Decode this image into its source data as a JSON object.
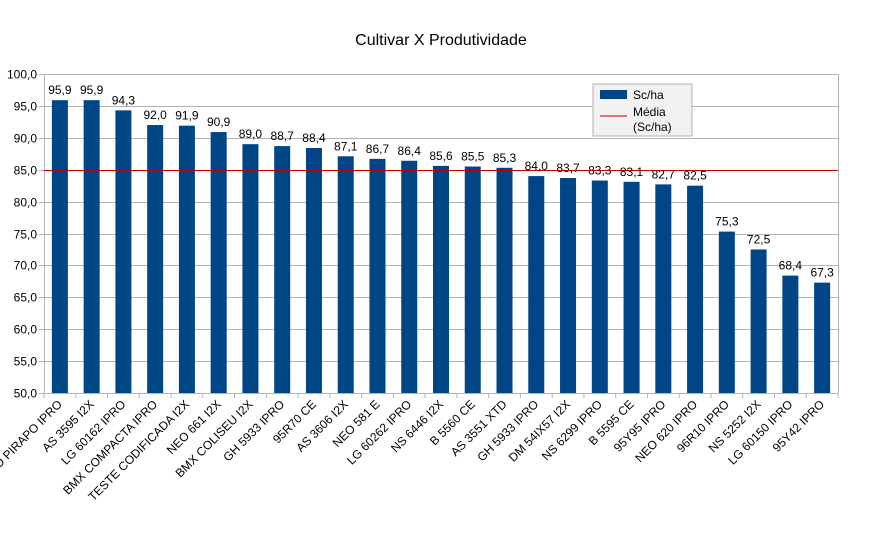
{
  "chart_data": {
    "type": "bar",
    "title": "Cultivar X Produtividade",
    "xlabel": "",
    "ylabel": "",
    "ylim": [
      50,
      100
    ],
    "yticks": [
      "50,0",
      "55,0",
      "60,0",
      "65,0",
      "70,0",
      "75,0",
      "80,0",
      "85,0",
      "90,0",
      "95,0",
      "100,0"
    ],
    "ytick_values": [
      50,
      55,
      60,
      65,
      70,
      75,
      80,
      85,
      90,
      95,
      100
    ],
    "grid": true,
    "legend_position": "top-right",
    "categories": [
      "HO PIRAPO IPRO",
      "AS 3595 I2X",
      "LG 60162 IPRO",
      "BMX COMPACTA IPRO",
      "TESTE CODIFICADA I2X",
      "NEO 661 I2X",
      "BMX COLISEU I2X",
      "GH 5933 IPRO",
      "95R70 CE",
      "AS 3606 I2X",
      "NEO 581 E",
      "LG 60262 IPRO",
      "NS 6446 I2X",
      "B 5560 CE",
      "AS 3551 XTD",
      "GH 5933 IPRO",
      "DM 54IX57 I2X",
      "NS 6299 IPRO",
      "B 5595 CE",
      "95Y95 IPRO",
      "NEO 620 IPRO",
      "96R10 IPRO",
      "NS 5252 I2X",
      "LG 60150 IPRO",
      "95Y42 IPRO"
    ],
    "values": [
      95.9,
      95.9,
      94.3,
      92.0,
      91.9,
      90.9,
      89.0,
      88.7,
      88.4,
      87.1,
      86.7,
      86.4,
      85.6,
      85.5,
      85.3,
      84.0,
      83.7,
      83.3,
      83.1,
      82.7,
      82.5,
      75.3,
      72.5,
      68.4,
      67.3
    ],
    "data_labels": [
      "95,9",
      "95,9",
      "94,3",
      "92,0",
      "91,9",
      "90,9",
      "89,0",
      "88,7",
      "88,4",
      "87,1",
      "86,7",
      "86,4",
      "85,6",
      "85,5",
      "85,3",
      "84,0",
      "83,7",
      "83,3",
      "83,1",
      "82,7",
      "82,5",
      "75,3",
      "72,5",
      "68,4",
      "67,3"
    ],
    "series": [
      {
        "name": "Sc/ha",
        "color": "#004586"
      }
    ],
    "reference_line": {
      "name_line1": "Média",
      "name_line2": "(Sc/ha)",
      "value": 85,
      "color": "#c00000"
    }
  }
}
